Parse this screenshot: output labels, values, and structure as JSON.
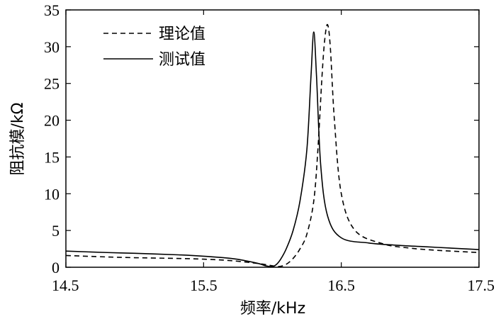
{
  "chart_data": {
    "type": "line",
    "title": "",
    "xlabel": "频率/kHz",
    "ylabel": "阻抗模/kΩ",
    "xlim": [
      14.5,
      17.5
    ],
    "ylim": [
      0,
      35
    ],
    "xticks": [
      14.5,
      15.5,
      16.5,
      17.5
    ],
    "xtick_labels": [
      "14.5",
      "15.5",
      "16.5",
      "17.5"
    ],
    "yticks": [
      0,
      5,
      10,
      15,
      20,
      25,
      30,
      35
    ],
    "ytick_labels": [
      "0",
      "5",
      "10",
      "15",
      "20",
      "25",
      "30",
      "35"
    ],
    "grid": false,
    "legend_position": "top-left",
    "series": [
      {
        "name": "理论值",
        "style": "dashed",
        "color": "#000000",
        "x": [
          14.5,
          14.8,
          15.0,
          15.3,
          15.5,
          15.7,
          15.9,
          16.0,
          16.05,
          16.1,
          16.15,
          16.2,
          16.25,
          16.3,
          16.33,
          16.36,
          16.38,
          16.4,
          16.42,
          16.45,
          16.5,
          16.6,
          16.8,
          17.0,
          17.2,
          17.5
        ],
        "y": [
          1.6,
          1.4,
          1.3,
          1.2,
          1.1,
          0.9,
          0.5,
          0.2,
          0.1,
          0.4,
          1.2,
          2.5,
          4.5,
          9.0,
          16.0,
          26.0,
          31.0,
          33.0,
          30.0,
          20.0,
          10.0,
          5.0,
          3.2,
          2.6,
          2.3,
          2.0
        ]
      },
      {
        "name": "测试值",
        "style": "solid",
        "color": "#000000",
        "x": [
          14.5,
          14.8,
          15.0,
          15.3,
          15.5,
          15.7,
          15.8,
          15.9,
          15.95,
          16.0,
          16.03,
          16.06,
          16.1,
          16.15,
          16.2,
          16.25,
          16.28,
          16.3,
          16.32,
          16.35,
          16.4,
          16.5,
          16.7,
          16.9,
          17.1,
          17.3,
          17.5
        ],
        "y": [
          2.2,
          2.0,
          1.9,
          1.7,
          1.5,
          1.2,
          0.9,
          0.5,
          0.2,
          0.1,
          0.4,
          1.1,
          2.5,
          5.0,
          9.0,
          16.0,
          26.0,
          32.0,
          26.0,
          14.0,
          7.0,
          4.0,
          3.3,
          3.0,
          2.8,
          2.6,
          2.4
        ]
      }
    ]
  }
}
